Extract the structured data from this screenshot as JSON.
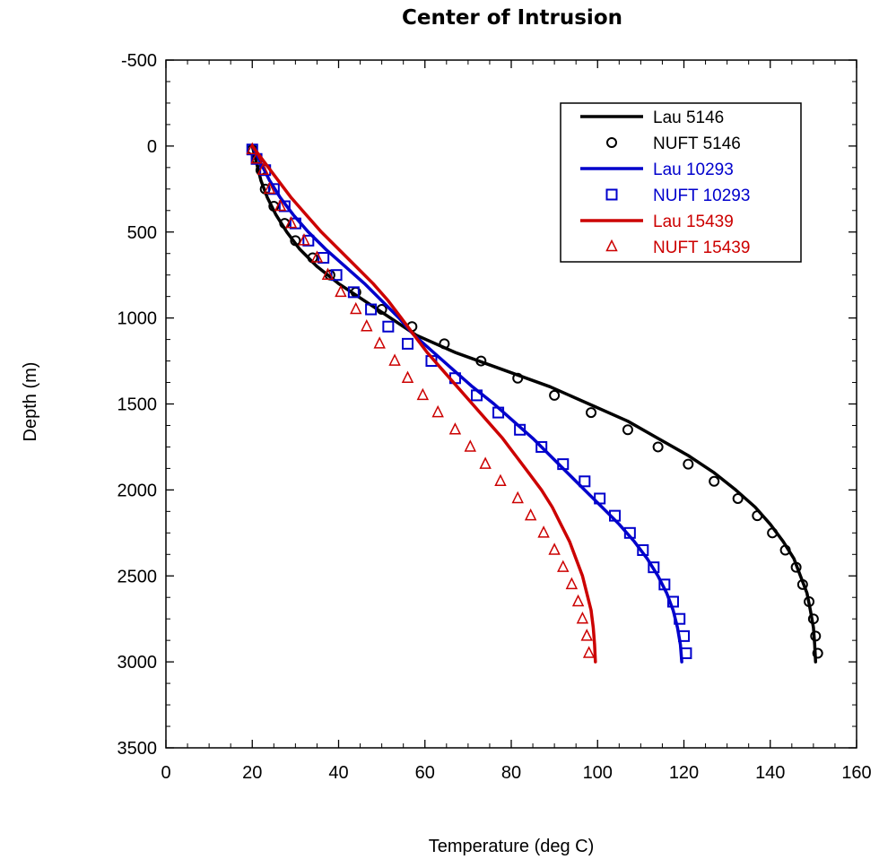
{
  "chart_data": {
    "type": "scatter",
    "title": "Center of Intrusion",
    "xlabel": "Temperature (deg C)",
    "ylabel": "Depth (m)",
    "xlim": [
      0,
      160
    ],
    "ylim": [
      -500,
      3500
    ],
    "y_inverted": true,
    "x_ticks": [
      0,
      20,
      40,
      60,
      80,
      100,
      120,
      140,
      160
    ],
    "y_ticks": [
      -500,
      0,
      500,
      1000,
      1500,
      2000,
      2500,
      3000,
      3500
    ],
    "grid": false,
    "legend_position": "top-right",
    "series": [
      {
        "name": "Lau 5146",
        "kind": "line",
        "color": "#000000",
        "points": [
          [
            20,
            0
          ],
          [
            21,
            100
          ],
          [
            22,
            200
          ],
          [
            23.5,
            300
          ],
          [
            25.5,
            400
          ],
          [
            28,
            500
          ],
          [
            31,
            600
          ],
          [
            35,
            700
          ],
          [
            40,
            800
          ],
          [
            46,
            900
          ],
          [
            52,
            1000
          ],
          [
            58,
            1100
          ],
          [
            67,
            1200
          ],
          [
            78,
            1300
          ],
          [
            89,
            1400
          ],
          [
            98,
            1500
          ],
          [
            107,
            1600
          ],
          [
            114,
            1700
          ],
          [
            121,
            1800
          ],
          [
            127,
            1900
          ],
          [
            132,
            2000
          ],
          [
            136.5,
            2100
          ],
          [
            140,
            2200
          ],
          [
            143,
            2300
          ],
          [
            145.5,
            2400
          ],
          [
            147,
            2500
          ],
          [
            148.5,
            2600
          ],
          [
            149.3,
            2700
          ],
          [
            150,
            2800
          ],
          [
            150.3,
            2900
          ],
          [
            150.5,
            3000
          ]
        ]
      },
      {
        "name": "NUFT 5146",
        "kind": "marker",
        "marker": "circle",
        "color": "#000000",
        "points": [
          [
            20,
            20
          ],
          [
            21,
            75
          ],
          [
            22,
            140
          ],
          [
            23,
            250
          ],
          [
            25,
            350
          ],
          [
            27.5,
            450
          ],
          [
            30,
            550
          ],
          [
            34,
            650
          ],
          [
            38,
            750
          ],
          [
            44,
            850
          ],
          [
            50,
            950
          ],
          [
            57,
            1050
          ],
          [
            64.5,
            1150
          ],
          [
            73,
            1250
          ],
          [
            81.5,
            1350
          ],
          [
            90,
            1450
          ],
          [
            98.5,
            1550
          ],
          [
            107,
            1650
          ],
          [
            114,
            1750
          ],
          [
            121,
            1850
          ],
          [
            127,
            1950
          ],
          [
            132.5,
            2050
          ],
          [
            137,
            2150
          ],
          [
            140.5,
            2250
          ],
          [
            143.5,
            2350
          ],
          [
            146,
            2450
          ],
          [
            147.5,
            2550
          ],
          [
            149,
            2650
          ],
          [
            150,
            2750
          ],
          [
            150.5,
            2850
          ],
          [
            151,
            2950
          ]
        ]
      },
      {
        "name": "Lau 10293",
        "kind": "line",
        "color": "#0000cc",
        "points": [
          [
            20,
            0
          ],
          [
            22,
            100
          ],
          [
            24,
            200
          ],
          [
            26.5,
            300
          ],
          [
            29.5,
            400
          ],
          [
            33,
            500
          ],
          [
            37,
            600
          ],
          [
            41.5,
            700
          ],
          [
            46,
            800
          ],
          [
            50,
            900
          ],
          [
            54,
            1000
          ],
          [
            57.5,
            1100
          ],
          [
            62,
            1200
          ],
          [
            66.5,
            1300
          ],
          [
            71,
            1400
          ],
          [
            76,
            1500
          ],
          [
            80.5,
            1600
          ],
          [
            85,
            1700
          ],
          [
            89,
            1800
          ],
          [
            93,
            1900
          ],
          [
            97,
            2000
          ],
          [
            101,
            2100
          ],
          [
            105,
            2200
          ],
          [
            108.5,
            2300
          ],
          [
            111.5,
            2400
          ],
          [
            114,
            2500
          ],
          [
            116,
            2600
          ],
          [
            117.5,
            2700
          ],
          [
            118.5,
            2800
          ],
          [
            119.2,
            2900
          ],
          [
            119.5,
            3000
          ]
        ]
      },
      {
        "name": "NUFT 10293",
        "kind": "marker",
        "marker": "square",
        "color": "#0000cc",
        "points": [
          [
            20,
            20
          ],
          [
            21,
            75
          ],
          [
            23,
            140
          ],
          [
            25,
            250
          ],
          [
            27.5,
            350
          ],
          [
            30,
            450
          ],
          [
            33,
            550
          ],
          [
            36.5,
            650
          ],
          [
            39.5,
            750
          ],
          [
            43.5,
            850
          ],
          [
            47.5,
            950
          ],
          [
            51.5,
            1050
          ],
          [
            56,
            1150
          ],
          [
            61.5,
            1250
          ],
          [
            67,
            1350
          ],
          [
            72,
            1450
          ],
          [
            77,
            1550
          ],
          [
            82,
            1650
          ],
          [
            87,
            1750
          ],
          [
            92,
            1850
          ],
          [
            97,
            1950
          ],
          [
            100.5,
            2050
          ],
          [
            104,
            2150
          ],
          [
            107.5,
            2250
          ],
          [
            110.5,
            2350
          ],
          [
            113,
            2450
          ],
          [
            115.5,
            2550
          ],
          [
            117.5,
            2650
          ],
          [
            119,
            2750
          ],
          [
            120,
            2850
          ],
          [
            120.5,
            2950
          ]
        ]
      },
      {
        "name": "Lau 15439",
        "kind": "line",
        "color": "#cc0000",
        "points": [
          [
            20,
            0
          ],
          [
            23,
            100
          ],
          [
            26,
            200
          ],
          [
            29,
            300
          ],
          [
            32.5,
            400
          ],
          [
            36,
            500
          ],
          [
            40,
            600
          ],
          [
            44,
            700
          ],
          [
            48,
            800
          ],
          [
            51.5,
            900
          ],
          [
            54.5,
            1000
          ],
          [
            57.5,
            1100
          ],
          [
            60.5,
            1200
          ],
          [
            64,
            1300
          ],
          [
            67.5,
            1400
          ],
          [
            71,
            1500
          ],
          [
            74.5,
            1600
          ],
          [
            78,
            1700
          ],
          [
            81,
            1800
          ],
          [
            84,
            1900
          ],
          [
            87,
            2000
          ],
          [
            89.5,
            2100
          ],
          [
            91.5,
            2200
          ],
          [
            93.5,
            2300
          ],
          [
            95,
            2400
          ],
          [
            96.5,
            2500
          ],
          [
            97.5,
            2600
          ],
          [
            98.5,
            2700
          ],
          [
            99,
            2800
          ],
          [
            99.3,
            2900
          ],
          [
            99.5,
            3000
          ]
        ]
      },
      {
        "name": "NUFT 15439",
        "kind": "marker",
        "marker": "triangle",
        "color": "#cc0000",
        "points": [
          [
            20,
            20
          ],
          [
            21,
            75
          ],
          [
            22.5,
            140
          ],
          [
            24,
            250
          ],
          [
            26.5,
            350
          ],
          [
            29,
            450
          ],
          [
            32,
            550
          ],
          [
            35,
            650
          ],
          [
            37.5,
            750
          ],
          [
            40.5,
            850
          ],
          [
            44,
            950
          ],
          [
            46.5,
            1050
          ],
          [
            49.5,
            1150
          ],
          [
            53,
            1250
          ],
          [
            56,
            1350
          ],
          [
            59.5,
            1450
          ],
          [
            63,
            1550
          ],
          [
            67,
            1650
          ],
          [
            70.5,
            1750
          ],
          [
            74,
            1850
          ],
          [
            77.5,
            1950
          ],
          [
            81.5,
            2050
          ],
          [
            84.5,
            2150
          ],
          [
            87.5,
            2250
          ],
          [
            90,
            2350
          ],
          [
            92,
            2450
          ],
          [
            94,
            2550
          ],
          [
            95.5,
            2650
          ],
          [
            96.5,
            2750
          ],
          [
            97.5,
            2850
          ],
          [
            98,
            2950
          ]
        ]
      }
    ]
  }
}
